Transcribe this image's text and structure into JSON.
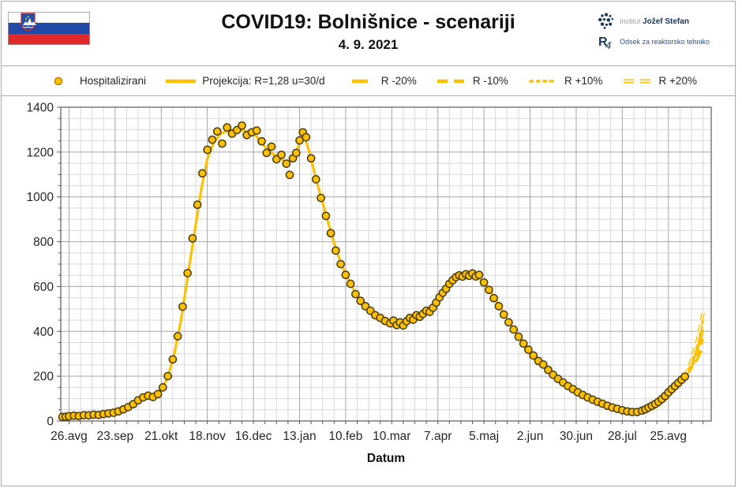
{
  "header": {
    "title": "COVID19: Bolnišnice - scenariji",
    "subtitle": "4. 9. 2021"
  },
  "flag": {
    "name": "slovenia-flag",
    "white": "#ffffff",
    "blue": "#2149a5",
    "red": "#e02828",
    "arms_blue": "#1f4fa8",
    "arms_star": "#f7c600"
  },
  "logo": {
    "line1_light": "Institut",
    "line1_bold": "Jožef Stefan",
    "line2_mark_r": "R",
    "line2_mark_4": "4",
    "line2_text": "Odsek za reaktorsko tehniko",
    "navy": "#17365d"
  },
  "legend": {
    "text_color": "#262626",
    "items": [
      {
        "label": "Hospitalizirani",
        "swatch": "circle"
      },
      {
        "label": "Projekcija: R=1,28 u=30/d",
        "swatch": "solid"
      },
      {
        "label": "R -20%",
        "swatch": "dash-long"
      },
      {
        "label": "R -10%",
        "swatch": "dash"
      },
      {
        "label": "R +10%",
        "swatch": "dots"
      },
      {
        "label": "R +20%",
        "swatch": "dash-hollow"
      }
    ]
  },
  "chart_data": {
    "type": "scatter",
    "xlabel": "Datum",
    "ylim": [
      0,
      1400
    ],
    "xlim": [
      -5,
      390
    ],
    "y_major_step": 200,
    "y_minor_step": 50,
    "x_major_step_days": 28,
    "x_minor_step_days": 7,
    "grid": {
      "minor_color": "#d9d9d9",
      "major_color": "#a6a6a6",
      "border_color": "#595959"
    },
    "text_color": "#262626",
    "accent_color": "#FFC000",
    "marker_stroke": "#463c14",
    "legend_marker_stroke": "#bf8300",
    "y_ticks": [
      0,
      200,
      400,
      600,
      800,
      1000,
      1200,
      1400
    ],
    "x_ticks": [
      {
        "day": 0,
        "label": "26.avg"
      },
      {
        "day": 28,
        "label": "23.sep"
      },
      {
        "day": 56,
        "label": "21.okt"
      },
      {
        "day": 84,
        "label": "18.nov"
      },
      {
        "day": 112,
        "label": "16.dec"
      },
      {
        "day": 140,
        "label": "13.jan"
      },
      {
        "day": 168,
        "label": "10.feb"
      },
      {
        "day": 196,
        "label": "10.mar"
      },
      {
        "day": 224,
        "label": "7.apr"
      },
      {
        "day": 252,
        "label": "5.maj"
      },
      {
        "day": 280,
        "label": "2.jun"
      },
      {
        "day": 308,
        "label": "30.jun"
      },
      {
        "day": 336,
        "label": "28.jul"
      },
      {
        "day": 364,
        "label": "25.avg"
      }
    ],
    "series": [
      {
        "name": "Projekcija: R=1,28 u=30/d",
        "type": "line",
        "style": "solid",
        "color": "#FFC000",
        "points": [
          [
            -4,
            20
          ],
          [
            7,
            25
          ],
          [
            21,
            31
          ],
          [
            28,
            38
          ],
          [
            35,
            58
          ],
          [
            42,
            90
          ],
          [
            49,
            112
          ],
          [
            56,
            140
          ],
          [
            60,
            195
          ],
          [
            64,
            300
          ],
          [
            68,
            450
          ],
          [
            72,
            640
          ],
          [
            76,
            830
          ],
          [
            80,
            1020
          ],
          [
            84,
            1170
          ],
          [
            88,
            1245
          ],
          [
            92,
            1280
          ],
          [
            96,
            1295
          ],
          [
            100,
            1298
          ],
          [
            104,
            1300
          ],
          [
            108,
            1292
          ],
          [
            112,
            1285
          ],
          [
            116,
            1252
          ],
          [
            120,
            1212
          ],
          [
            124,
            1190
          ],
          [
            128,
            1175
          ],
          [
            132,
            1152
          ],
          [
            136,
            1165
          ],
          [
            140,
            1240
          ],
          [
            143,
            1268
          ],
          [
            146,
            1200
          ],
          [
            150,
            1080
          ],
          [
            154,
            975
          ],
          [
            158,
            870
          ],
          [
            162,
            768
          ],
          [
            166,
            688
          ],
          [
            170,
            625
          ],
          [
            174,
            572
          ],
          [
            178,
            532
          ],
          [
            182,
            498
          ],
          [
            186,
            470
          ],
          [
            190,
            448
          ],
          [
            194,
            430
          ],
          [
            198,
            420
          ],
          [
            202,
            425
          ],
          [
            206,
            440
          ],
          [
            210,
            455
          ],
          [
            214,
            475
          ],
          [
            218,
            500
          ],
          [
            222,
            530
          ],
          [
            226,
            565
          ],
          [
            230,
            600
          ],
          [
            234,
            628
          ],
          [
            238,
            645
          ],
          [
            242,
            652
          ],
          [
            246,
            648
          ],
          [
            250,
            630
          ],
          [
            254,
            600
          ],
          [
            258,
            556
          ],
          [
            262,
            506
          ],
          [
            266,
            456
          ],
          [
            270,
            410
          ],
          [
            274,
            368
          ],
          [
            278,
            330
          ],
          [
            282,
            295
          ],
          [
            286,
            262
          ],
          [
            290,
            232
          ],
          [
            294,
            205
          ],
          [
            298,
            180
          ],
          [
            302,
            158
          ],
          [
            306,
            140
          ],
          [
            310,
            123
          ],
          [
            314,
            107
          ],
          [
            318,
            93
          ],
          [
            322,
            80
          ],
          [
            326,
            68
          ],
          [
            330,
            58
          ],
          [
            334,
            50
          ],
          [
            338,
            44
          ],
          [
            342,
            40
          ],
          [
            346,
            39
          ],
          [
            350,
            43
          ],
          [
            354,
            52
          ],
          [
            358,
            68
          ],
          [
            362,
            92
          ],
          [
            366,
            122
          ],
          [
            370,
            155
          ],
          [
            374,
            198
          ],
          [
            377,
            238
          ],
          [
            380,
            288
          ],
          [
            382,
            328
          ],
          [
            385,
            408
          ]
        ]
      },
      {
        "name": "R -20%",
        "type": "line",
        "style": "dash-long",
        "color": "#FFC000",
        "points": [
          [
            374,
            198
          ],
          [
            377,
            224
          ],
          [
            380,
            256
          ],
          [
            382,
            282
          ],
          [
            385,
            328
          ]
        ]
      },
      {
        "name": "R -10%",
        "type": "line",
        "style": "dash",
        "color": "#FFC000",
        "points": [
          [
            374,
            198
          ],
          [
            377,
            230
          ],
          [
            380,
            270
          ],
          [
            382,
            302
          ],
          [
            385,
            366
          ]
        ]
      },
      {
        "name": "R +10%",
        "type": "line",
        "style": "dots",
        "color": "#FFC000",
        "points": [
          [
            374,
            198
          ],
          [
            377,
            244
          ],
          [
            380,
            302
          ],
          [
            382,
            348
          ],
          [
            385,
            452
          ]
        ]
      },
      {
        "name": "R +20%",
        "type": "line",
        "style": "dash-hollow",
        "color": "#FFC000",
        "points": [
          [
            374,
            198
          ],
          [
            377,
            250
          ],
          [
            380,
            318
          ],
          [
            382,
            370
          ],
          [
            385,
            482
          ]
        ]
      },
      {
        "name": "Hospitalizirani",
        "type": "scatter",
        "color": "#FFC000",
        "points": [
          [
            -4,
            18
          ],
          [
            -2,
            19
          ],
          [
            0,
            21
          ],
          [
            3,
            24
          ],
          [
            6,
            22
          ],
          [
            9,
            26
          ],
          [
            12,
            25
          ],
          [
            15,
            28
          ],
          [
            18,
            27
          ],
          [
            21,
            31
          ],
          [
            24,
            34
          ],
          [
            27,
            37
          ],
          [
            30,
            43
          ],
          [
            33,
            52
          ],
          [
            36,
            62
          ],
          [
            39,
            75
          ],
          [
            42,
            92
          ],
          [
            45,
            105
          ],
          [
            48,
            113
          ],
          [
            51,
            107
          ],
          [
            54,
            120
          ],
          [
            57,
            150
          ],
          [
            60,
            200
          ],
          [
            63,
            275
          ],
          [
            66,
            378
          ],
          [
            69,
            510
          ],
          [
            72,
            660
          ],
          [
            75,
            815
          ],
          [
            78,
            965
          ],
          [
            81,
            1105
          ],
          [
            84,
            1210
          ],
          [
            87,
            1255
          ],
          [
            90,
            1292
          ],
          [
            93,
            1238
          ],
          [
            96,
            1310
          ],
          [
            99,
            1282
          ],
          [
            102,
            1298
          ],
          [
            105,
            1318
          ],
          [
            108,
            1276
          ],
          [
            111,
            1288
          ],
          [
            114,
            1296
          ],
          [
            117,
            1248
          ],
          [
            120,
            1196
          ],
          [
            123,
            1224
          ],
          [
            126,
            1168
          ],
          [
            129,
            1188
          ],
          [
            132,
            1148
          ],
          [
            134,
            1098
          ],
          [
            136,
            1172
          ],
          [
            138,
            1196
          ],
          [
            140,
            1252
          ],
          [
            142,
            1288
          ],
          [
            144,
            1266
          ],
          [
            147,
            1172
          ],
          [
            150,
            1078
          ],
          [
            153,
            995
          ],
          [
            156,
            915
          ],
          [
            159,
            838
          ],
          [
            162,
            760
          ],
          [
            165,
            700
          ],
          [
            168,
            652
          ],
          [
            171,
            612
          ],
          [
            174,
            566
          ],
          [
            177,
            536
          ],
          [
            180,
            512
          ],
          [
            183,
            492
          ],
          [
            186,
            472
          ],
          [
            189,
            460
          ],
          [
            192,
            446
          ],
          [
            195,
            436
          ],
          [
            197,
            448
          ],
          [
            199,
            428
          ],
          [
            201,
            440
          ],
          [
            203,
            426
          ],
          [
            205,
            445
          ],
          [
            207,
            460
          ],
          [
            209,
            452
          ],
          [
            211,
            472
          ],
          [
            213,
            465
          ],
          [
            215,
            478
          ],
          [
            217,
            492
          ],
          [
            219,
            487
          ],
          [
            221,
            505
          ],
          [
            223,
            528
          ],
          [
            225,
            552
          ],
          [
            227,
            572
          ],
          [
            229,
            590
          ],
          [
            231,
            612
          ],
          [
            233,
            628
          ],
          [
            235,
            642
          ],
          [
            237,
            650
          ],
          [
            239,
            644
          ],
          [
            241,
            655
          ],
          [
            243,
            648
          ],
          [
            245,
            658
          ],
          [
            247,
            645
          ],
          [
            249,
            652
          ],
          [
            252,
            618
          ],
          [
            255,
            585
          ],
          [
            258,
            548
          ],
          [
            261,
            512
          ],
          [
            264,
            475
          ],
          [
            267,
            440
          ],
          [
            270,
            408
          ],
          [
            273,
            376
          ],
          [
            276,
            345
          ],
          [
            279,
            318
          ],
          [
            282,
            292
          ],
          [
            285,
            268
          ],
          [
            288,
            252
          ],
          [
            291,
            228
          ],
          [
            294,
            206
          ],
          [
            297,
            188
          ],
          [
            300,
            172
          ],
          [
            303,
            156
          ],
          [
            306,
            142
          ],
          [
            309,
            128
          ],
          [
            312,
            116
          ],
          [
            315,
            105
          ],
          [
            318,
            95
          ],
          [
            321,
            86
          ],
          [
            324,
            77
          ],
          [
            327,
            68
          ],
          [
            330,
            60
          ],
          [
            333,
            54
          ],
          [
            336,
            48
          ],
          [
            339,
            43
          ],
          [
            342,
            40
          ],
          [
            345,
            40
          ],
          [
            348,
            46
          ],
          [
            350,
            52
          ],
          [
            352,
            60
          ],
          [
            354,
            68
          ],
          [
            356,
            76
          ],
          [
            358,
            86
          ],
          [
            360,
            98
          ],
          [
            362,
            112
          ],
          [
            364,
            128
          ],
          [
            366,
            142
          ],
          [
            368,
            156
          ],
          [
            370,
            170
          ],
          [
            372,
            184
          ],
          [
            374,
            198
          ]
        ]
      }
    ]
  }
}
